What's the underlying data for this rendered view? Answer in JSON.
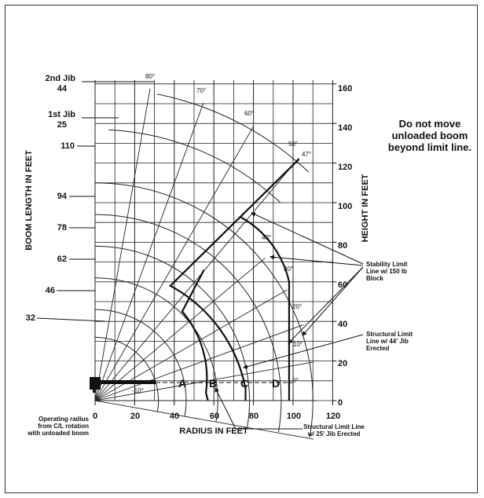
{
  "colors": {
    "ink": "#111111",
    "grid": "#222222",
    "background": "#ffffff"
  },
  "axes": {
    "x_label": "RADIUS IN FEET",
    "y_right_label": "HEIGHT IN FEET",
    "y_left_label": "BOOM LENGTH IN FEET",
    "x_ticks": [
      "0",
      "20",
      "40",
      "60",
      "80",
      "100",
      "120"
    ],
    "y_ticks": [
      "0",
      "20",
      "40",
      "60",
      "80",
      "100",
      "120",
      "140",
      "160"
    ]
  },
  "boom_lengths": [
    "32",
    "46",
    "62",
    "78",
    "94",
    "110"
  ],
  "jibs": {
    "second": {
      "name": "2nd Jib",
      "value": "44"
    },
    "first": {
      "name": "1st Jib",
      "value": "25"
    }
  },
  "angles": [
    "80°",
    "70°",
    "60°",
    "50°",
    "47°",
    "40°",
    "30°",
    "20°",
    "10°",
    "0°",
    "-10°"
  ],
  "zones": [
    "A",
    "B",
    "C",
    "D"
  ],
  "notes": {
    "warning": [
      "Do not move",
      "unloaded boom",
      "beyond limit line."
    ],
    "stability": [
      "Stability Limit",
      "Line w/ 150 lb",
      "Block"
    ],
    "structural_44": [
      "Structural Limit",
      "Line w/ 44' Jib",
      "Erected"
    ],
    "structural_25": [
      "Structural Limit Line",
      "w/ 25' Jib Erected"
    ],
    "operating_radius": [
      "Operating radius",
      "from C/L rotation",
      "with unloaded boom"
    ]
  }
}
